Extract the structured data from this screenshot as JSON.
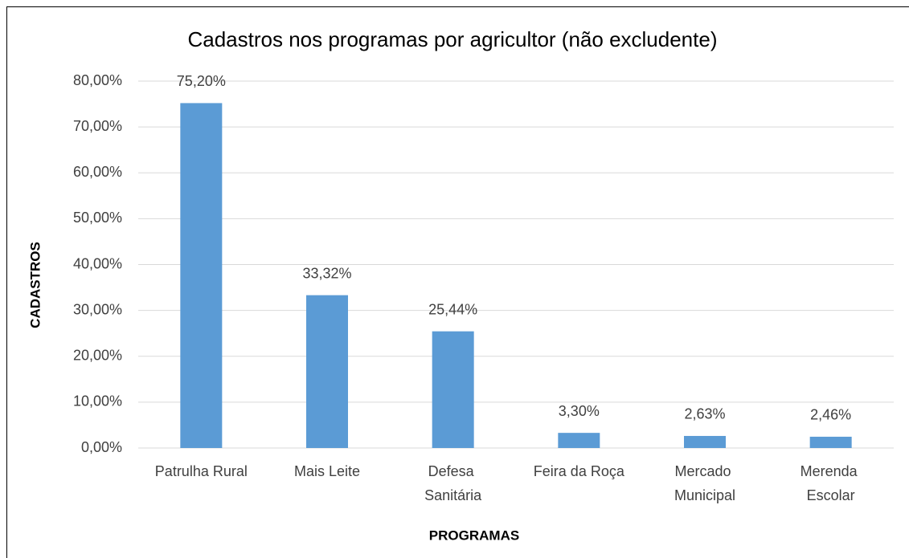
{
  "chart_data": {
    "type": "bar",
    "title": "Cadastros nos programas por agricultor (não excludente)",
    "x_label": "PROGRAMAS",
    "y_label": "CADASTROS",
    "categories": [
      "Patrulha Rural",
      "Mais Leite",
      "Defesa Sanitária",
      "Feira da Roça",
      "Mercado Municipal",
      "Merenda Escolar"
    ],
    "values": [
      75.2,
      33.32,
      25.44,
      3.3,
      2.63,
      2.46
    ],
    "value_labels": [
      "75,20%",
      "33,32%",
      "25,44%",
      "3,30%",
      "2,63%",
      "2,46%"
    ],
    "color": "#5b9bd5",
    "ylim": [
      0,
      80
    ],
    "yticks": [
      {
        "value": 0,
        "label": "0,00%"
      },
      {
        "value": 10,
        "label": "10,00%"
      },
      {
        "value": 20,
        "label": "20,00%"
      },
      {
        "value": 30,
        "label": "30,00%"
      },
      {
        "value": 40,
        "label": "40,00%"
      },
      {
        "value": 50,
        "label": "50,00%"
      },
      {
        "value": 60,
        "label": "60,00%"
      },
      {
        "value": 70,
        "label": "70,00%"
      },
      {
        "value": 80,
        "label": "80,00%"
      }
    ],
    "grid": true
  }
}
